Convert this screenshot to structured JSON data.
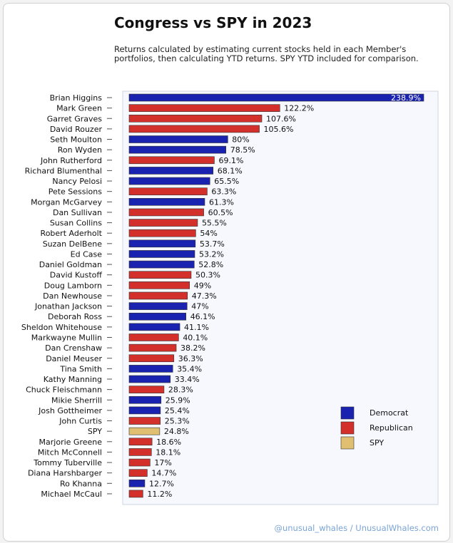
{
  "header": {
    "title": "Congress vs SPY in 2023",
    "subtitle": "Returns calculated by estimating current stocks held in each Member's portfolios, then calculating YTD returns. SPY YTD included for comparison."
  },
  "footer": {
    "credit": "@unusual_whales / UnusualWhales.com"
  },
  "colors": {
    "Democrat": "#1a22b0",
    "Republican": "#d4302b",
    "SPY": "#e0c070"
  },
  "chart_data": {
    "type": "bar",
    "orientation": "horizontal",
    "title": "Congress vs SPY in 2023",
    "xlim": [
      0,
      260
    ],
    "legend": {
      "placement": "right",
      "entries": [
        "Democrat",
        "Republican",
        "SPY"
      ]
    },
    "categories": [
      "Brian Higgins",
      "Mark Green",
      "Garret Graves",
      "David Rouzer",
      "Seth Moulton",
      "Ron Wyden",
      "John Rutherford",
      "Richard Blumenthal",
      "Nancy Pelosi",
      "Pete Sessions",
      "Morgan McGarvey",
      "Dan Sullivan",
      "Susan Collins",
      "Robert Aderholt",
      "Suzan DelBene",
      "Ed Case",
      "Daniel Goldman",
      "David Kustoff",
      "Doug Lamborn",
      "Dan Newhouse",
      "Jonathan Jackson",
      "Deborah Ross",
      "Sheldon Whitehouse",
      "Markwayne Mullin",
      "Dan Crenshaw",
      "Daniel Meuser",
      "Tina Smith",
      "Kathy Manning",
      "Chuck Fleischmann",
      "Mikie Sherrill",
      "Josh Gottheimer",
      "John Curtis",
      "SPY",
      "Marjorie Greene",
      "Mitch McConnell",
      "Tommy Tuberville",
      "Diana Harshbarger",
      "Ro Khanna",
      "Michael McCaul"
    ],
    "values": [
      238.9,
      122.2,
      107.6,
      105.6,
      80,
      78.5,
      69.1,
      68.1,
      65.5,
      63.3,
      61.3,
      60.5,
      55.5,
      54,
      53.7,
      53.2,
      52.8,
      50.3,
      49,
      47.3,
      47,
      46.1,
      41.1,
      40.1,
      38.2,
      36.3,
      35.4,
      33.4,
      28.3,
      25.9,
      25.4,
      25.3,
      24.8,
      18.6,
      18.1,
      17,
      14.7,
      12.7,
      11.2
    ],
    "labels": [
      "238.9%",
      "122.2%",
      "107.6%",
      "105.6%",
      "80%",
      "78.5%",
      "69.1%",
      "68.1%",
      "65.5%",
      "63.3%",
      "61.3%",
      "60.5%",
      "55.5%",
      "54%",
      "53.7%",
      "53.2%",
      "52.8%",
      "50.3%",
      "49%",
      "47.3%",
      "47%",
      "46.1%",
      "41.1%",
      "40.1%",
      "38.2%",
      "36.3%",
      "35.4%",
      "33.4%",
      "28.3%",
      "25.9%",
      "25.4%",
      "25.3%",
      "24.8%",
      "18.6%",
      "18.1%",
      "17%",
      "14.7%",
      "12.7%",
      "11.2%"
    ],
    "groups": [
      "Democrat",
      "Republican",
      "Republican",
      "Republican",
      "Democrat",
      "Democrat",
      "Republican",
      "Democrat",
      "Democrat",
      "Republican",
      "Democrat",
      "Republican",
      "Republican",
      "Republican",
      "Democrat",
      "Democrat",
      "Democrat",
      "Republican",
      "Republican",
      "Republican",
      "Democrat",
      "Democrat",
      "Democrat",
      "Republican",
      "Republican",
      "Republican",
      "Democrat",
      "Democrat",
      "Republican",
      "Democrat",
      "Democrat",
      "Republican",
      "SPY",
      "Republican",
      "Republican",
      "Republican",
      "Republican",
      "Democrat",
      "Republican"
    ]
  }
}
